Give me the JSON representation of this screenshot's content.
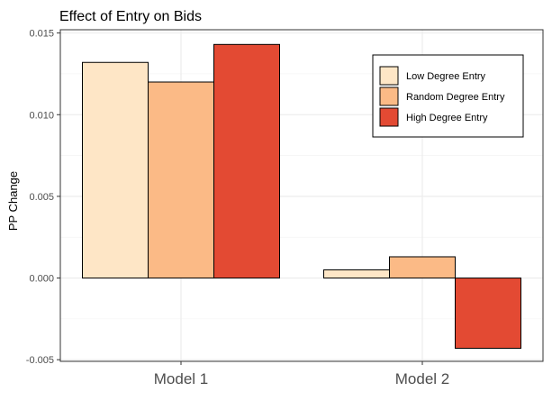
{
  "chart_data": {
    "type": "bar",
    "title": "Effect of Entry on Bids",
    "xlabel": "",
    "ylabel": "PP Change",
    "categories": [
      "Model 1",
      "Model 2"
    ],
    "series": [
      {
        "name": "Low Degree Entry",
        "values": [
          0.0132,
          0.0005
        ],
        "color": "#fee6c6"
      },
      {
        "name": "Random Degree Entry",
        "values": [
          0.012,
          0.0013
        ],
        "color": "#fbba86"
      },
      {
        "name": "High Degree Entry",
        "values": [
          0.0143,
          -0.0043
        ],
        "color": "#e34a33"
      }
    ],
    "ylim": [
      -0.0051,
      0.0152
    ],
    "yticks": [
      -0.005,
      0.0,
      0.005,
      0.01,
      0.015
    ],
    "ytick_labels": [
      "-0.005",
      "0.000",
      "0.005",
      "0.010",
      "0.015"
    ],
    "grid": true,
    "legend_position": "top-right"
  }
}
